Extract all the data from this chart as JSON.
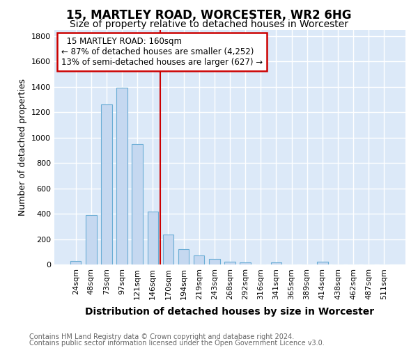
{
  "title": "15, MARTLEY ROAD, WORCESTER, WR2 6HG",
  "subtitle": "Size of property relative to detached houses in Worcester",
  "xlabel": "Distribution of detached houses by size in Worcester",
  "ylabel": "Number of detached properties",
  "footer_line1": "Contains HM Land Registry data © Crown copyright and database right 2024.",
  "footer_line2": "Contains public sector information licensed under the Open Government Licence v3.0.",
  "bin_labels": [
    "24sqm",
    "48sqm",
    "73sqm",
    "97sqm",
    "121sqm",
    "146sqm",
    "170sqm",
    "194sqm",
    "219sqm",
    "243sqm",
    "268sqm",
    "292sqm",
    "316sqm",
    "341sqm",
    "365sqm",
    "389sqm",
    "414sqm",
    "438sqm",
    "462sqm",
    "487sqm",
    "511sqm"
  ],
  "bin_values": [
    30,
    390,
    1260,
    1395,
    950,
    415,
    235,
    120,
    70,
    45,
    20,
    15,
    0,
    15,
    0,
    0,
    20,
    0,
    0,
    0,
    0
  ],
  "bar_color": "#c5d8f0",
  "bar_edgecolor": "#6aadd5",
  "bar_width": 0.7,
  "vline_color": "#cc0000",
  "annotation_title": "15 MARTLEY ROAD: 160sqm",
  "annotation_line1": "← 87% of detached houses are smaller (4,252)",
  "annotation_line2": "13% of semi-detached houses are larger (627) →",
  "annotation_box_color": "#ffffff",
  "annotation_box_edgecolor": "#cc0000",
  "ylim": [
    0,
    1850
  ],
  "background_color": "#dce9f8",
  "grid_color": "#ffffff",
  "title_fontsize": 12,
  "subtitle_fontsize": 10,
  "axis_label_fontsize": 9,
  "tick_fontsize": 8,
  "footer_fontsize": 7
}
